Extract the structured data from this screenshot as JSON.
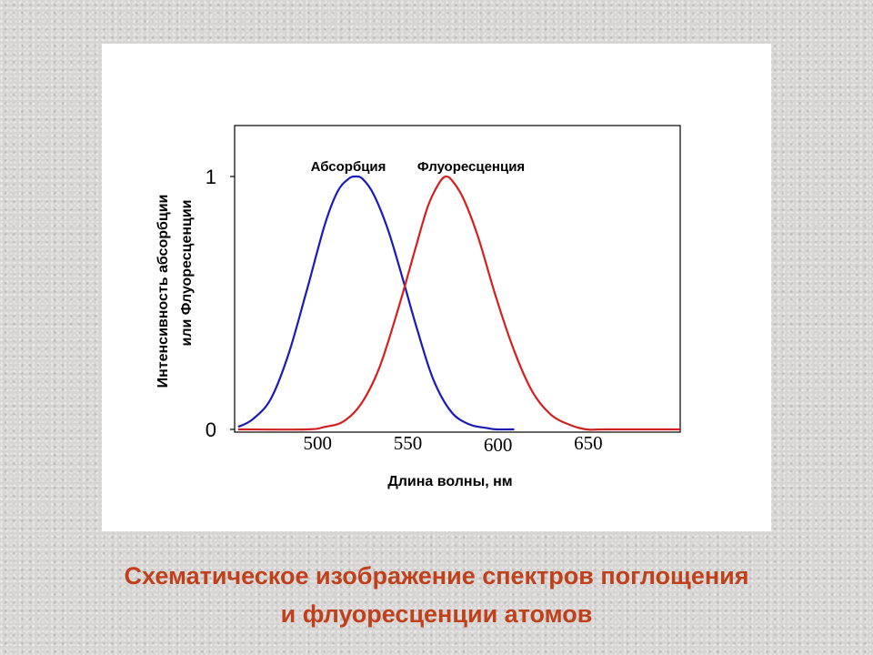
{
  "caption": {
    "line1": "Схематическое изображение спектров поглощения",
    "line2": "и флуоресценции атомов"
  },
  "colors": {
    "absorption": "#1a1ab8",
    "fluorescence": "#d42020",
    "caption": "#c0401c"
  },
  "chart_data": {
    "type": "line",
    "title": "",
    "xlabel": "Длина волны, нм",
    "ylabel_line1": "Интенсивность абсорбции",
    "ylabel_line2": "или Флуоресценции",
    "xlim": [
      455,
      702
    ],
    "ylim": [
      0,
      1.2
    ],
    "x_ticks": [
      500,
      550,
      600,
      650
    ],
    "x_tick_labels": [
      "500",
      "550",
      "600",
      "650"
    ],
    "y_ticks": [
      0,
      1
    ],
    "y_tick_labels": [
      "0",
      "1"
    ],
    "grid": false,
    "series": [
      {
        "name": "Абсорбция",
        "color": "#1a1ab8",
        "x": [
          457,
          465,
          475,
          485,
          495,
          505,
          512,
          518,
          522,
          526,
          532,
          540,
          548,
          556,
          565,
          575,
          585,
          595,
          600,
          610
        ],
        "y": [
          0.01,
          0.04,
          0.12,
          0.3,
          0.55,
          0.81,
          0.94,
          0.99,
          1.0,
          0.99,
          0.93,
          0.79,
          0.6,
          0.4,
          0.2,
          0.07,
          0.02,
          0.005,
          0.0,
          0.0
        ]
      },
      {
        "name": "Флуоресценция",
        "color": "#d42020",
        "x": [
          457,
          495,
          505,
          515,
          525,
          535,
          545,
          555,
          562,
          568,
          572,
          576,
          582,
          590,
          600,
          610,
          620,
          630,
          640,
          650,
          660,
          702
        ],
        "y": [
          0.0,
          0.0,
          0.01,
          0.03,
          0.1,
          0.24,
          0.46,
          0.71,
          0.88,
          0.97,
          1.0,
          0.98,
          0.91,
          0.76,
          0.52,
          0.31,
          0.15,
          0.06,
          0.02,
          0.0,
          0.0,
          0.0
        ]
      }
    ]
  }
}
